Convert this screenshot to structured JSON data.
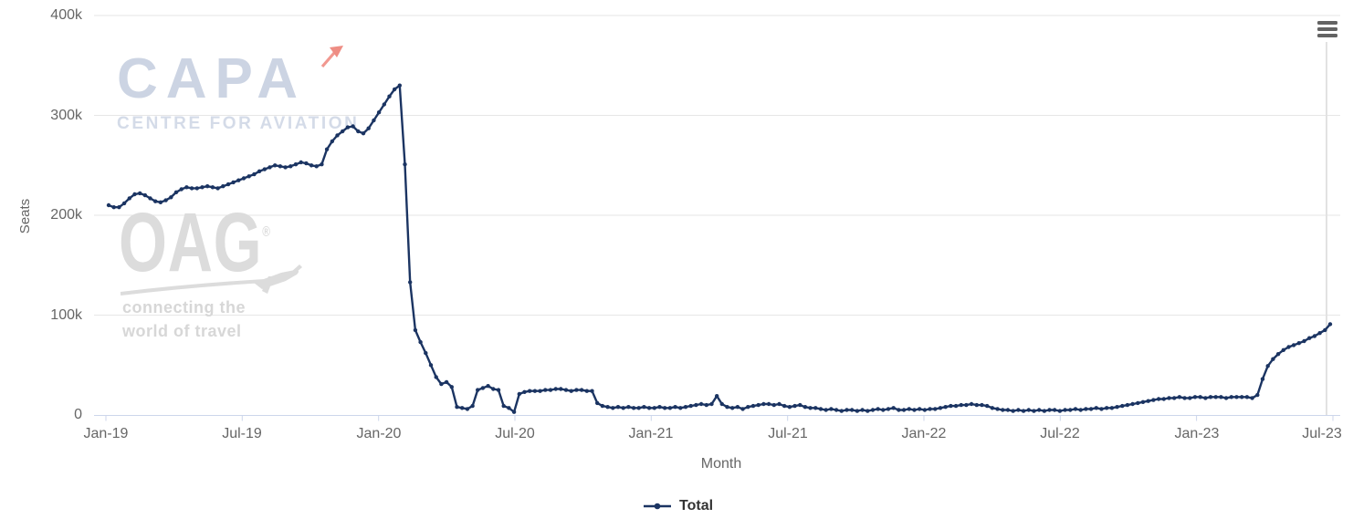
{
  "chart": {
    "yaxis": {
      "title": "Seats",
      "labels": [
        "400k",
        "300k",
        "200k",
        "100k",
        "0"
      ]
    },
    "xaxis": {
      "title": "Month",
      "labels": [
        "Jan-19",
        "Jul-19",
        "Jan-20",
        "Jul-20",
        "Jan-21",
        "Jul-21",
        "Jan-22",
        "Jul-22",
        "Jan-23",
        "Jul-23"
      ]
    },
    "legend": {
      "total_label": "Total"
    },
    "menu_icon": "hamburger-context-menu"
  },
  "watermarks": {
    "capa": {
      "logo": "CAPA",
      "subtitle": "CENTRE FOR AVIATION",
      "arrow_icon": "red-arrow"
    },
    "oag": {
      "logo": "OAG",
      "registered_mark": "®",
      "plane_icon": "airplane-swoosh",
      "subtitle_line1": "connecting the",
      "subtitle_line2": "world of travel"
    }
  },
  "colors": {
    "series": "#1b3462",
    "axis_label": "#666666",
    "gridline": "#e6e6e6",
    "axis_line": "#ccd6eb",
    "crosshair": "#e2e2e2",
    "legend_text": "#333333",
    "capa_watermark": "#ccd4e3",
    "capa_arrow": "#ef9189",
    "oag_watermark": "#dcdcdc",
    "menu_icon": "#636363"
  },
  "chart_data": {
    "type": "line",
    "title": "",
    "xlabel": "Month",
    "ylabel": "Seats",
    "ylim": [
      0,
      400000
    ],
    "x_tick_labels": [
      "Jan-19",
      "Jul-19",
      "Jan-20",
      "Jul-20",
      "Jan-21",
      "Jul-21",
      "Jan-22",
      "Jul-22",
      "Jan-23",
      "Jul-23"
    ],
    "granularity": "weekly",
    "grid": "horizontal-only",
    "legend_position": "bottom",
    "marker": "filled-circle",
    "series": [
      {
        "name": "Total",
        "values": [
          210000,
          208000,
          208000,
          212000,
          217000,
          221000,
          222000,
          220000,
          217000,
          214000,
          213000,
          215000,
          218000,
          223000,
          226000,
          228000,
          227000,
          227000,
          228000,
          229000,
          228000,
          227000,
          229000,
          231000,
          233000,
          235000,
          237000,
          239000,
          241000,
          244000,
          246000,
          248000,
          250000,
          249000,
          248000,
          249000,
          251000,
          253000,
          252000,
          250000,
          249000,
          251000,
          266000,
          274000,
          280000,
          284000,
          288000,
          289000,
          284000,
          282000,
          287000,
          295000,
          303000,
          311000,
          319000,
          326000,
          330000,
          251000,
          133000,
          85000,
          73000,
          62000,
          50000,
          38000,
          31000,
          33000,
          28000,
          8000,
          7000,
          6000,
          9000,
          25000,
          27000,
          29000,
          26000,
          25000,
          9000,
          7000,
          3000,
          21000,
          23000,
          24000,
          24000,
          24000,
          25000,
          25000,
          26000,
          26000,
          25000,
          24000,
          25000,
          25000,
          24000,
          24000,
          12000,
          9000,
          8000,
          7000,
          8000,
          7000,
          8000,
          7000,
          7000,
          8000,
          7000,
          7000,
          8000,
          7000,
          7000,
          8000,
          7000,
          8000,
          9000,
          10000,
          11000,
          10000,
          11000,
          19000,
          11000,
          8000,
          7000,
          8000,
          6000,
          8000,
          9000,
          10000,
          11000,
          11000,
          10000,
          11000,
          9000,
          8000,
          9000,
          10000,
          8000,
          7000,
          7000,
          6000,
          5000,
          6000,
          5000,
          4000,
          5000,
          5000,
          4000,
          5000,
          4000,
          5000,
          6000,
          5000,
          6000,
          7000,
          5000,
          5000,
          6000,
          5000,
          6000,
          5000,
          6000,
          6000,
          7000,
          8000,
          9000,
          9000,
          10000,
          10000,
          11000,
          10000,
          10000,
          9000,
          7000,
          6000,
          5000,
          5000,
          4000,
          5000,
          4000,
          5000,
          4000,
          5000,
          4000,
          5000,
          5000,
          4000,
          5000,
          5000,
          6000,
          5000,
          6000,
          6000,
          7000,
          6000,
          7000,
          7000,
          8000,
          9000,
          10000,
          11000,
          12000,
          13000,
          14000,
          15000,
          16000,
          16000,
          17000,
          17000,
          18000,
          17000,
          17000,
          18000,
          18000,
          17000,
          18000,
          18000,
          18000,
          17000,
          18000,
          18000,
          18000,
          18000,
          17000,
          20000,
          36000,
          49000,
          56000,
          61000,
          65000,
          68000,
          70000,
          72000,
          74000,
          77000,
          79000,
          82000,
          85000,
          91000
        ]
      }
    ]
  }
}
